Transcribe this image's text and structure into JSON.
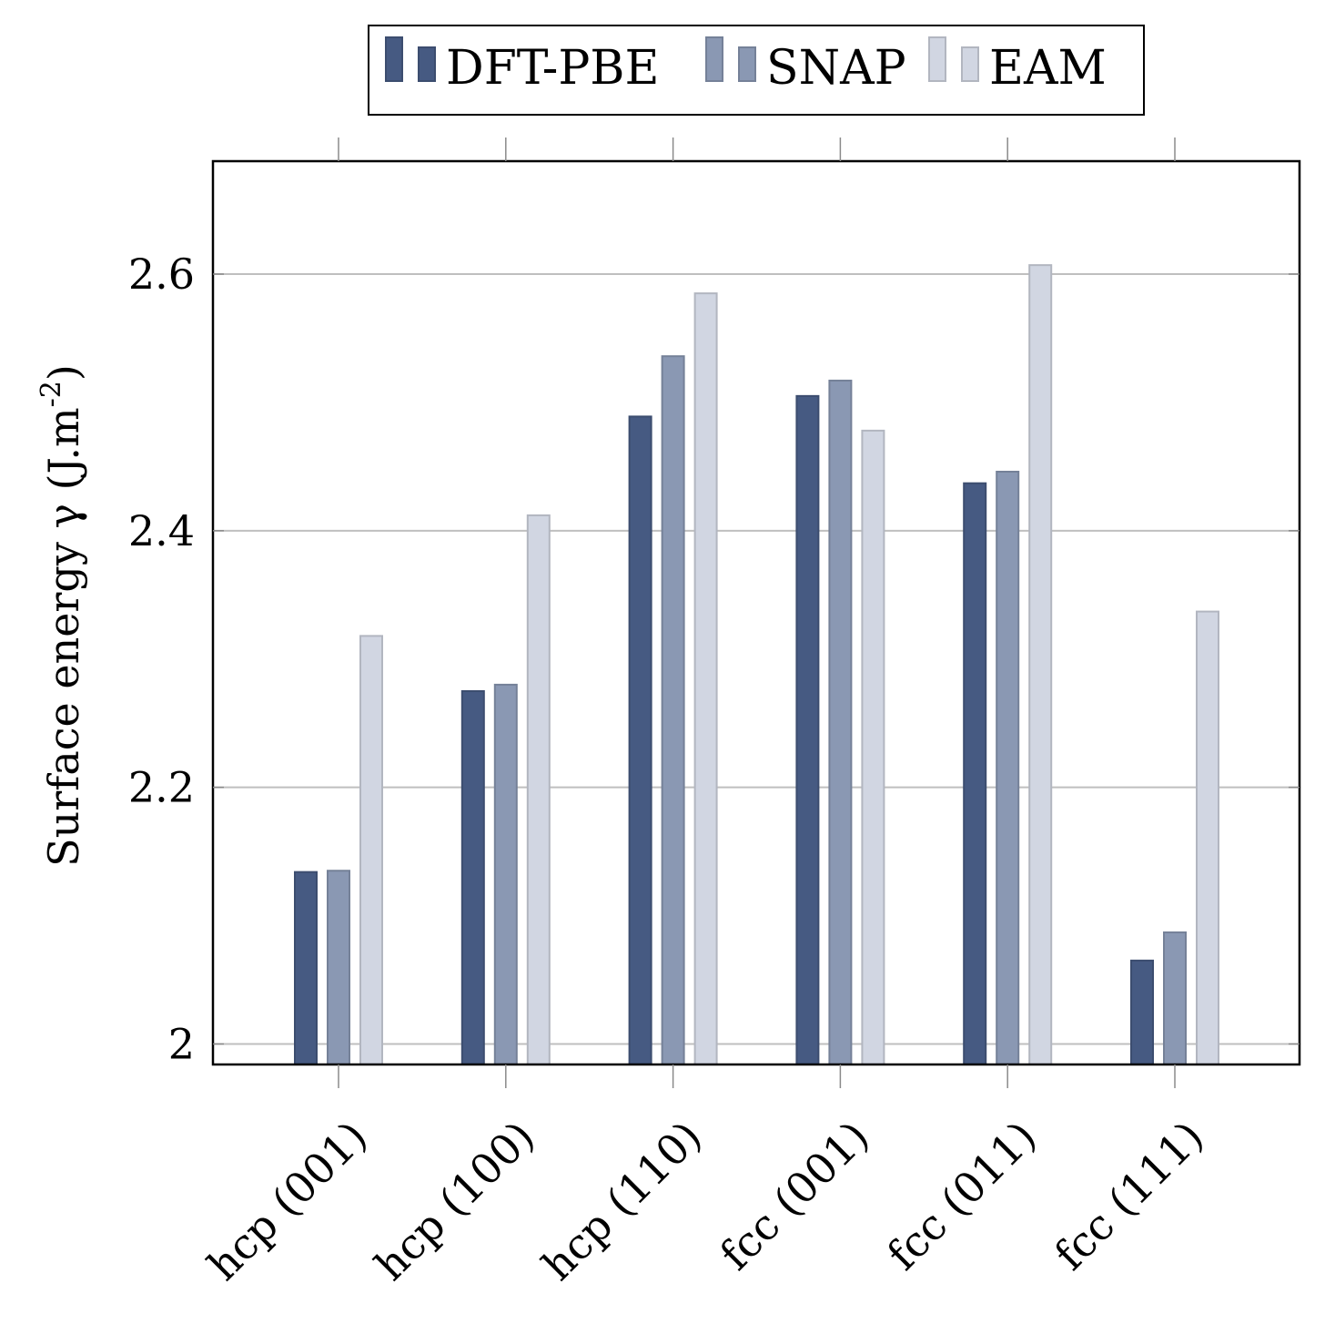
{
  "chart_data": {
    "type": "bar",
    "categories": [
      "hcp (001)",
      "hcp (100)",
      "hcp (110)",
      "fcc (001)",
      "fcc (011)",
      "fcc (111)"
    ],
    "series": [
      {
        "name": "DFT-PBE",
        "color": "#465a82",
        "values": [
          2.134,
          2.275,
          2.489,
          2.505,
          2.437,
          2.065
        ]
      },
      {
        "name": "SNAP",
        "color": "#8a98b3",
        "values": [
          2.135,
          2.28,
          2.536,
          2.517,
          2.446,
          2.087
        ]
      },
      {
        "name": "EAM",
        "color": "#d1d6e2",
        "values": [
          2.318,
          2.412,
          2.585,
          2.478,
          2.607,
          2.337
        ]
      }
    ],
    "ylabel": "Surface energy γ (J.m",
    "ylabel_sup": "-2",
    "ylabel_close": ")",
    "xlabel": "",
    "ylim": [
      1.984,
      2.688
    ],
    "yticks": [
      2,
      2.2,
      2.4,
      2.6
    ],
    "ytick_labels": [
      "2",
      "2.2",
      "2.4",
      "2.6"
    ],
    "grid": "horizontal",
    "legend_position": "top-center"
  }
}
